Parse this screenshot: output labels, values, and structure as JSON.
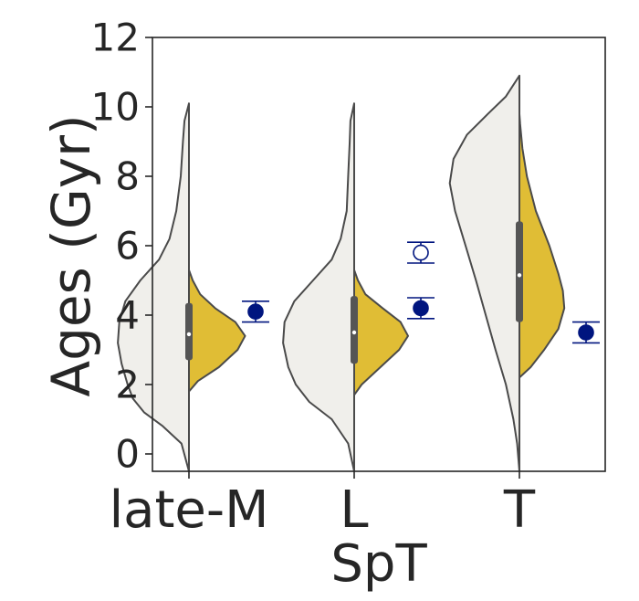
{
  "chart_data": {
    "type": "violin",
    "xlabel": "SpT",
    "ylabel": "Ages (Gyr)",
    "categories": [
      "late-M",
      "L",
      "T"
    ],
    "yticks": [
      0,
      2,
      4,
      6,
      8,
      10,
      12
    ],
    "ylim": [
      -0.5,
      12
    ],
    "grid": false,
    "legend": "none",
    "colors": {
      "left_violin": "#f0efeb",
      "right_violin": "#e0bd35",
      "outline": "#4a4a4a",
      "box": "#555555",
      "marker": "#00157f"
    },
    "violins": [
      {
        "category": "late-M",
        "left": {
          "profile": [
            [
              -0.5,
              0
            ],
            [
              0.3,
              0.1
            ],
            [
              0.8,
              0.35
            ],
            [
              1.2,
              0.6
            ],
            [
              1.6,
              0.75
            ],
            [
              2,
              0.82
            ],
            [
              2.6,
              0.9
            ],
            [
              3.2,
              0.95
            ],
            [
              3.8,
              0.93
            ],
            [
              4.4,
              0.85
            ],
            [
              5,
              0.65
            ],
            [
              5.6,
              0.4
            ],
            [
              6.2,
              0.26
            ],
            [
              7,
              0.17
            ],
            [
              8,
              0.11
            ],
            [
              9,
              0.08
            ],
            [
              9.6,
              0.06
            ],
            [
              10.1,
              0
            ]
          ]
        },
        "right": {
          "profile": [
            [
              1.8,
              0
            ],
            [
              2.1,
              0.12
            ],
            [
              2.5,
              0.4
            ],
            [
              3,
              0.65
            ],
            [
              3.4,
              0.75
            ],
            [
              3.8,
              0.62
            ],
            [
              4.2,
              0.35
            ],
            [
              4.6,
              0.15
            ],
            [
              5,
              0.05
            ],
            [
              5.3,
              0
            ]
          ]
        },
        "box": {
          "q1": 2.7,
          "q3": 4.35,
          "median": 3.45
        },
        "points": [
          {
            "value": 4.1,
            "err": 0.3,
            "filled": true
          }
        ]
      },
      {
        "category": "L",
        "left": {
          "profile": [
            [
              -0.5,
              0
            ],
            [
              0.3,
              0.08
            ],
            [
              1,
              0.3
            ],
            [
              1.5,
              0.6
            ],
            [
              2,
              0.78
            ],
            [
              2.5,
              0.88
            ],
            [
              3.2,
              0.95
            ],
            [
              3.8,
              0.93
            ],
            [
              4.4,
              0.8
            ],
            [
              5,
              0.55
            ],
            [
              5.6,
              0.3
            ],
            [
              6.2,
              0.18
            ],
            [
              7,
              0.1
            ],
            [
              8,
              0.08
            ],
            [
              9,
              0.06
            ],
            [
              9.6,
              0.05
            ],
            [
              10.1,
              0
            ]
          ]
        },
        "right": {
          "profile": [
            [
              1.7,
              0
            ],
            [
              2,
              0.1
            ],
            [
              2.5,
              0.35
            ],
            [
              3,
              0.6
            ],
            [
              3.4,
              0.72
            ],
            [
              3.8,
              0.62
            ],
            [
              4.2,
              0.38
            ],
            [
              4.6,
              0.15
            ],
            [
              5,
              0.05
            ],
            [
              5.3,
              0
            ]
          ]
        },
        "box": {
          "q1": 2.6,
          "q3": 4.55,
          "median": 3.5
        },
        "points": [
          {
            "value": 5.8,
            "err": 0.3,
            "filled": false
          },
          {
            "value": 4.2,
            "err": 0.3,
            "filled": true
          }
        ]
      },
      {
        "category": "T",
        "left": {
          "profile": [
            [
              -0.5,
              0
            ],
            [
              0.3,
              0.03
            ],
            [
              1,
              0.08
            ],
            [
              2,
              0.18
            ],
            [
              3,
              0.32
            ],
            [
              4,
              0.45
            ],
            [
              5,
              0.58
            ],
            [
              6,
              0.72
            ],
            [
              7,
              0.86
            ],
            [
              7.8,
              0.93
            ],
            [
              8.5,
              0.88
            ],
            [
              9.2,
              0.7
            ],
            [
              9.8,
              0.42
            ],
            [
              10.3,
              0.18
            ],
            [
              10.9,
              0
            ]
          ]
        },
        "right": {
          "profile": [
            [
              2.2,
              0
            ],
            [
              2.5,
              0.15
            ],
            [
              3,
              0.33
            ],
            [
              3.6,
              0.52
            ],
            [
              4.2,
              0.6
            ],
            [
              4.7,
              0.58
            ],
            [
              5.2,
              0.52
            ],
            [
              6,
              0.4
            ],
            [
              7,
              0.22
            ],
            [
              8,
              0.1
            ],
            [
              8.8,
              0.04
            ],
            [
              9.5,
              0.01
            ],
            [
              9.8,
              0
            ]
          ]
        },
        "box": {
          "q1": 3.8,
          "q3": 6.7,
          "median": 5.15
        },
        "points": [
          {
            "value": 3.5,
            "err": 0.3,
            "filled": true
          }
        ]
      }
    ]
  }
}
